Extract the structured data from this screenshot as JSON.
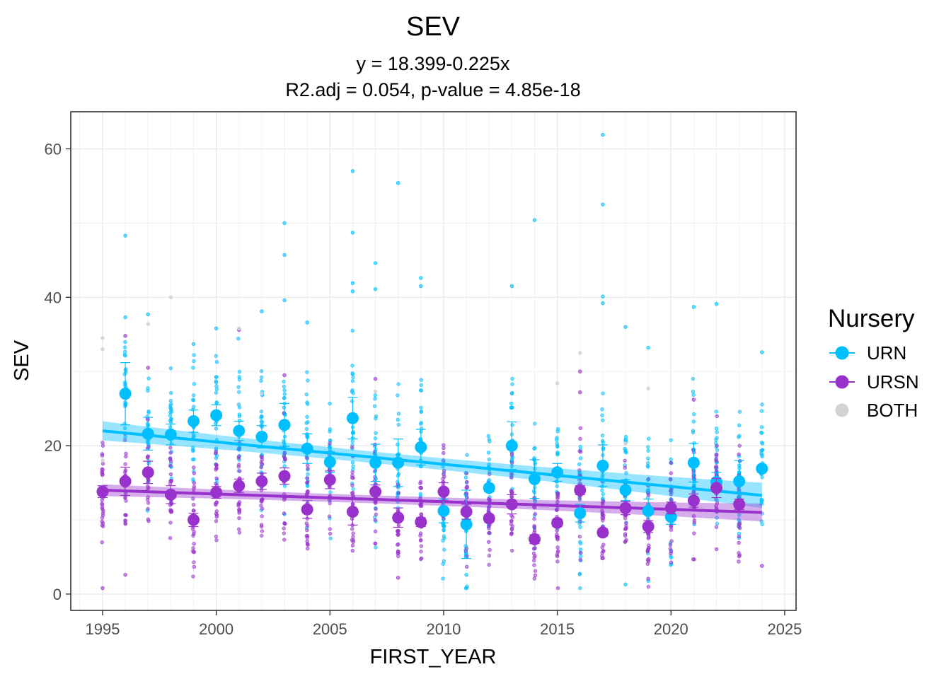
{
  "chart_data": {
    "type": "scatter",
    "title": "SEV",
    "subtitle_lines": [
      "y = 18.399-0.225x",
      "R2.adj = 0.054, p-value = 4.85e-18"
    ],
    "xlabel": "FIRST_YEAR",
    "ylabel": "SEV",
    "xlim": [
      1993.6,
      2025.5
    ],
    "ylim": [
      -2.2,
      65
    ],
    "x_ticks": [
      1995,
      2000,
      2005,
      2010,
      2015,
      2020,
      2025
    ],
    "y_ticks": [
      0,
      20,
      40,
      60
    ],
    "grid": true,
    "legend": {
      "title": "Nursery",
      "position": "right",
      "entries": [
        "URN",
        "URSN",
        "BOTH"
      ]
    },
    "colors": {
      "URN": "#00bfff",
      "URSN": "#9932cc",
      "BOTH": "#d3d3d3"
    },
    "series": [
      {
        "name": "URN",
        "mean_points": [
          {
            "x": 1996,
            "y": 27.0,
            "err": 4.2
          },
          {
            "x": 1997,
            "y": 21.6,
            "err": 2.2
          },
          {
            "x": 1998,
            "y": 21.5,
            "err": 1.4
          },
          {
            "x": 1999,
            "y": 23.3,
            "err": 1.5
          },
          {
            "x": 2000,
            "y": 24.1,
            "err": 1.4
          },
          {
            "x": 2001,
            "y": 22.0,
            "err": 1.3
          },
          {
            "x": 2002,
            "y": 21.2,
            "err": 1.5
          },
          {
            "x": 2003,
            "y": 22.8,
            "err": 2.9
          },
          {
            "x": 2004,
            "y": 19.6,
            "err": 2.0
          },
          {
            "x": 2005,
            "y": 17.8,
            "err": 1.4
          },
          {
            "x": 2006,
            "y": 23.7,
            "err": 2.8
          },
          {
            "x": 2007,
            "y": 17.7,
            "err": 2.5
          },
          {
            "x": 2008,
            "y": 17.7,
            "err": 3.2
          },
          {
            "x": 2009,
            "y": 19.8,
            "err": 2.4
          },
          {
            "x": 2010,
            "y": 11.2,
            "err": 1.6
          },
          {
            "x": 2011,
            "y": 9.4,
            "err": 4.6
          },
          {
            "x": 2012,
            "y": 14.3,
            "err": 0.5
          },
          {
            "x": 2013,
            "y": 20.0,
            "err": 3.2
          },
          {
            "x": 2014,
            "y": 15.5,
            "err": 2.6
          },
          {
            "x": 2015,
            "y": 16.4,
            "err": 1.2
          },
          {
            "x": 2016,
            "y": 10.9,
            "err": 1.2
          },
          {
            "x": 2017,
            "y": 17.3,
            "err": 2.8
          },
          {
            "x": 2018,
            "y": 14.0,
            "err": 1.4
          },
          {
            "x": 2019,
            "y": 11.2,
            "err": 1.6
          },
          {
            "x": 2020,
            "y": 10.4,
            "err": 1.0
          },
          {
            "x": 2021,
            "y": 17.7,
            "err": 2.6
          },
          {
            "x": 2022,
            "y": 15.1,
            "err": 1.3
          },
          {
            "x": 2023,
            "y": 15.2,
            "err": 2.8
          },
          {
            "x": 2024,
            "y": 16.9,
            "err": 0.4
          }
        ],
        "trend": {
          "x0": 1995,
          "y0": 22.0,
          "x1": 2024,
          "y1": 13.3,
          "band_start": 1.3,
          "band_end": 1.7
        },
        "outliers": [
          {
            "x": 1996,
            "y": 48.3
          },
          {
            "x": 1996,
            "y": 37.3
          },
          {
            "x": 1997,
            "y": 37.7
          },
          {
            "x": 1999,
            "y": 33.7
          },
          {
            "x": 2000,
            "y": 35.8
          },
          {
            "x": 2002,
            "y": 38.1
          },
          {
            "x": 2003,
            "y": 50.0
          },
          {
            "x": 2003,
            "y": 45.7
          },
          {
            "x": 2003,
            "y": 39.6
          },
          {
            "x": 2004,
            "y": 36.6
          },
          {
            "x": 2006,
            "y": 57.0
          },
          {
            "x": 2006,
            "y": 48.7
          },
          {
            "x": 2006,
            "y": 41.9
          },
          {
            "x": 2006,
            "y": 40.8
          },
          {
            "x": 2007,
            "y": 44.6
          },
          {
            "x": 2007,
            "y": 41.1
          },
          {
            "x": 2008,
            "y": 55.4
          },
          {
            "x": 2009,
            "y": 42.6
          },
          {
            "x": 2009,
            "y": 41.5
          },
          {
            "x": 2013,
            "y": 41.5
          },
          {
            "x": 2014,
            "y": 50.4
          },
          {
            "x": 2017,
            "y": 61.9
          },
          {
            "x": 2017,
            "y": 52.5
          },
          {
            "x": 2017,
            "y": 40.1
          },
          {
            "x": 2017,
            "y": 39.2
          },
          {
            "x": 2018,
            "y": 36.0
          },
          {
            "x": 2019,
            "y": 33.2
          },
          {
            "x": 2021,
            "y": 38.7
          },
          {
            "x": 2022,
            "y": 39.1
          },
          {
            "x": 2024,
            "y": 32.6
          },
          {
            "x": 2018,
            "y": 1.3
          },
          {
            "x": 2019,
            "y": 1.8
          },
          {
            "x": 2011,
            "y": 2.6
          }
        ]
      },
      {
        "name": "URSN",
        "mean_points": [
          {
            "x": 1995,
            "y": 13.8,
            "err": 0.8
          },
          {
            "x": 1996,
            "y": 15.2,
            "err": 1.9
          },
          {
            "x": 1997,
            "y": 16.4,
            "err": 1.5
          },
          {
            "x": 1998,
            "y": 13.4,
            "err": 1.2
          },
          {
            "x": 1999,
            "y": 10.0,
            "err": 0.9
          },
          {
            "x": 2000,
            "y": 13.7,
            "err": 0.8
          },
          {
            "x": 2001,
            "y": 14.6,
            "err": 0.9
          },
          {
            "x": 2002,
            "y": 15.2,
            "err": 1.1
          },
          {
            "x": 2003,
            "y": 15.9,
            "err": 1.1
          },
          {
            "x": 2004,
            "y": 11.4,
            "err": 1.2
          },
          {
            "x": 2005,
            "y": 15.4,
            "err": 1.2
          },
          {
            "x": 2006,
            "y": 11.1,
            "err": 1.8
          },
          {
            "x": 2007,
            "y": 13.8,
            "err": 0.9
          },
          {
            "x": 2008,
            "y": 10.3,
            "err": 1.3
          },
          {
            "x": 2009,
            "y": 9.7,
            "err": 0.6
          },
          {
            "x": 2010,
            "y": 13.8,
            "err": 1.2
          },
          {
            "x": 2011,
            "y": 11.1,
            "err": 1.0
          },
          {
            "x": 2012,
            "y": 10.2,
            "err": 0.5
          },
          {
            "x": 2013,
            "y": 12.1,
            "err": 1.3
          },
          {
            "x": 2014,
            "y": 7.4,
            "err": 0.6
          },
          {
            "x": 2015,
            "y": 9.6,
            "err": 0.5
          },
          {
            "x": 2016,
            "y": 14.0,
            "err": 0.6
          },
          {
            "x": 2017,
            "y": 8.3,
            "err": 0.5
          },
          {
            "x": 2018,
            "y": 11.6,
            "err": 0.9
          },
          {
            "x": 2019,
            "y": 9.1,
            "err": 0.8
          },
          {
            "x": 2020,
            "y": 11.6,
            "err": 0.8
          },
          {
            "x": 2021,
            "y": 12.6,
            "err": 0.9
          },
          {
            "x": 2022,
            "y": 14.3,
            "err": 1.3
          },
          {
            "x": 2023,
            "y": 12.1,
            "err": 0.7
          }
        ],
        "trend": {
          "x0": 1995,
          "y0": 14.0,
          "x1": 2024,
          "y1": 11.0,
          "band_start": 0.8,
          "band_end": 1.2
        },
        "outliers": [
          {
            "x": 1995,
            "y": 0.8
          },
          {
            "x": 1996,
            "y": 34.8
          },
          {
            "x": 1996,
            "y": 2.6
          },
          {
            "x": 1997,
            "y": 30.5
          },
          {
            "x": 2001,
            "y": 35.6
          },
          {
            "x": 2003,
            "y": 29.5
          },
          {
            "x": 2007,
            "y": 29.0
          },
          {
            "x": 2016,
            "y": 30.0
          },
          {
            "x": 2016,
            "y": 27.2
          },
          {
            "x": 2021,
            "y": 26.2
          },
          {
            "x": 2024,
            "y": 3.8
          },
          {
            "x": 2008,
            "y": 2.2
          }
        ]
      },
      {
        "name": "BOTH",
        "outliers": [
          {
            "x": 1995,
            "y": 34.5
          },
          {
            "x": 1995,
            "y": 33.0
          },
          {
            "x": 1998,
            "y": 40.0
          },
          {
            "x": 2001,
            "y": 35.8
          },
          {
            "x": 1997,
            "y": 36.4
          },
          {
            "x": 2016,
            "y": 32.5
          },
          {
            "x": 2019,
            "y": 27.7
          },
          {
            "x": 2015,
            "y": 28.4
          },
          {
            "x": 2007,
            "y": 27.3
          },
          {
            "x": 1995,
            "y": 18.0
          },
          {
            "x": 2018,
            "y": 20.3
          },
          {
            "x": 2002,
            "y": 27.0
          }
        ]
      }
    ]
  }
}
